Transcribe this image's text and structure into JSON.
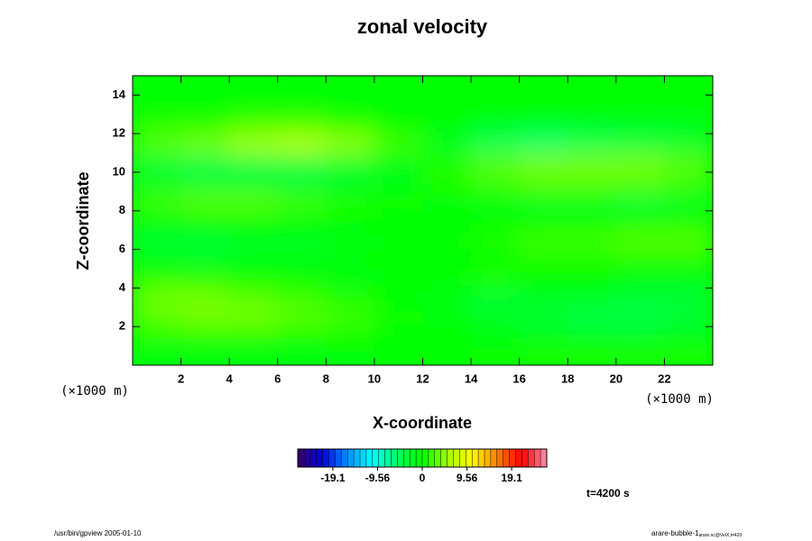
{
  "chart_data": {
    "type": "heatmap",
    "title": "zonal velocity",
    "xlabel": "X-coordinate",
    "ylabel": "Z-coordinate",
    "xunit": "(×1000 m)",
    "yunit": "(×1000 m)",
    "xlim": [
      0,
      24
    ],
    "ylim": [
      0,
      15
    ],
    "xticks": [
      2,
      4,
      6,
      8,
      10,
      12,
      14,
      16,
      18,
      20,
      22
    ],
    "yticks": [
      2,
      4,
      6,
      8,
      10,
      12,
      14
    ],
    "field": [
      [
        -1,
        -1,
        -1,
        -1,
        -0.5,
        0,
        0,
        0.5,
        1,
        1,
        1,
        1
      ],
      [
        1,
        1,
        1,
        0.5,
        0.5,
        0,
        0,
        -0.5,
        -1,
        -1.5,
        -2,
        -1
      ],
      [
        3,
        4,
        4,
        3,
        2,
        0.5,
        -0.5,
        -2,
        -3,
        -4,
        -4,
        -3
      ],
      [
        4,
        4,
        3,
        2,
        1,
        0,
        -1,
        -3,
        -2,
        -2,
        -3,
        -3
      ],
      [
        1,
        1,
        0,
        0,
        -1,
        0,
        0,
        1,
        0,
        0,
        -1,
        -1
      ],
      [
        -1,
        -2,
        -1,
        -1,
        0,
        0,
        0,
        0,
        1,
        1,
        1,
        1
      ],
      [
        -3,
        -3,
        -2,
        -2,
        -1,
        0,
        0,
        1,
        2,
        2,
        3,
        3
      ],
      [
        0,
        0,
        0,
        0,
        0,
        0,
        0,
        0,
        0,
        0,
        0,
        0
      ],
      [
        2,
        3,
        3,
        2,
        1,
        0.5,
        -0.5,
        -1,
        -2,
        -2,
        -3,
        -2
      ],
      [
        -2,
        -3,
        -3,
        -3,
        -2,
        -1,
        1,
        2,
        3,
        3,
        3,
        2
      ],
      [
        -3,
        -4,
        -4,
        -4,
        -3,
        -1,
        1,
        3,
        4,
        4,
        4,
        3
      ],
      [
        3,
        4,
        6,
        7,
        5,
        2,
        -2,
        -5,
        -6,
        -5,
        -4,
        -3
      ],
      [
        1,
        1,
        2,
        2,
        1,
        0,
        0,
        -1,
        -1,
        -1,
        -1,
        -1
      ],
      [
        0,
        0,
        0,
        0,
        0,
        0,
        0,
        0,
        0,
        0,
        0,
        0
      ],
      [
        0,
        0,
        0,
        0,
        0,
        0,
        0,
        0,
        0,
        0,
        0,
        0
      ]
    ],
    "vlim": [
      -26.6,
      26.6
    ],
    "colors": [
      "#3a0060",
      "#0000e0",
      "#0090ff",
      "#00ffff",
      "#00ff60",
      "#00ff00",
      "#a0ff00",
      "#ffff00",
      "#ff8000",
      "#ff0000",
      "#ff90b0"
    ],
    "cticks": [
      -19.1,
      -9.56,
      0,
      9.56,
      19.1
    ],
    "time_label": "t=4200 s",
    "footer_left": "/usr/bin/gpview 2005-01-10",
    "footer_right": "arare-bubble-1",
    "footer_right_sub": "arare.nc@VelX,t=420"
  }
}
